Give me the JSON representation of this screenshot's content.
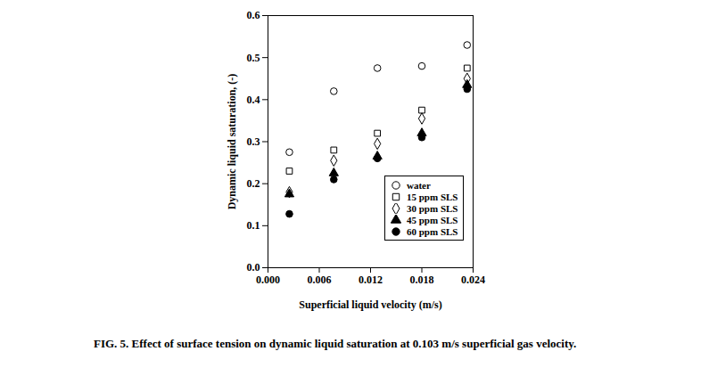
{
  "chart_data": {
    "type": "scatter",
    "title": "FIG. 5. Effect of surface tension on dynamic liquid saturation at 0.103 m/s superficial gas velocity.",
    "x_label": "Superficial liquid velocity (m/s)",
    "y_label": "Dynamic liquid saturation, (-)",
    "x": [
      0.0025,
      0.0077,
      0.0128,
      0.018,
      0.0233
    ],
    "series": [
      {
        "name": "water",
        "color": "#000000",
        "marker": "open circle",
        "values": [
          0.275,
          0.42,
          0.475,
          0.48,
          0.53
        ]
      },
      {
        "name": "15 ppm SLS",
        "color": "#000000",
        "marker": "open square",
        "values": [
          0.23,
          0.28,
          0.32,
          0.375,
          0.475
        ]
      },
      {
        "name": "30 ppm SLS",
        "color": "#000000",
        "marker": "open diamond",
        "values": [
          0.18,
          0.255,
          0.295,
          0.355,
          0.45
        ]
      },
      {
        "name": "45 ppm SLS",
        "color": "#000000",
        "marker": "filled triangle",
        "values": [
          0.175,
          0.225,
          0.265,
          0.32,
          0.435
        ]
      },
      {
        "name": "60 ppm SLS",
        "color": "#000000",
        "marker": "filled circle",
        "values": [
          0.128,
          0.21,
          0.26,
          0.31,
          0.425
        ]
      }
    ],
    "xlim": [
      0,
      0.024
    ],
    "xticks": [
      {
        "value": 0,
        "label": "0.000"
      },
      {
        "value": 0.006,
        "label": "0.006"
      },
      {
        "value": 0.012,
        "label": "0.012"
      },
      {
        "value": 0.018,
        "label": "0.018"
      },
      {
        "value": 0.024,
        "label": "0.024"
      }
    ],
    "ylim": [
      0,
      0.6
    ],
    "yticks": [
      {
        "value": 0,
        "label": "0.0"
      },
      {
        "value": 0.1,
        "label": "0.1"
      },
      {
        "value": 0.2,
        "label": "0.2"
      },
      {
        "value": 0.3,
        "label": "0.3"
      },
      {
        "value": 0.4,
        "label": "0.4"
      },
      {
        "value": 0.5,
        "label": "0.5"
      },
      {
        "value": 0.6,
        "label": "0.6"
      }
    ],
    "grid": false,
    "legend": "lower right"
  }
}
